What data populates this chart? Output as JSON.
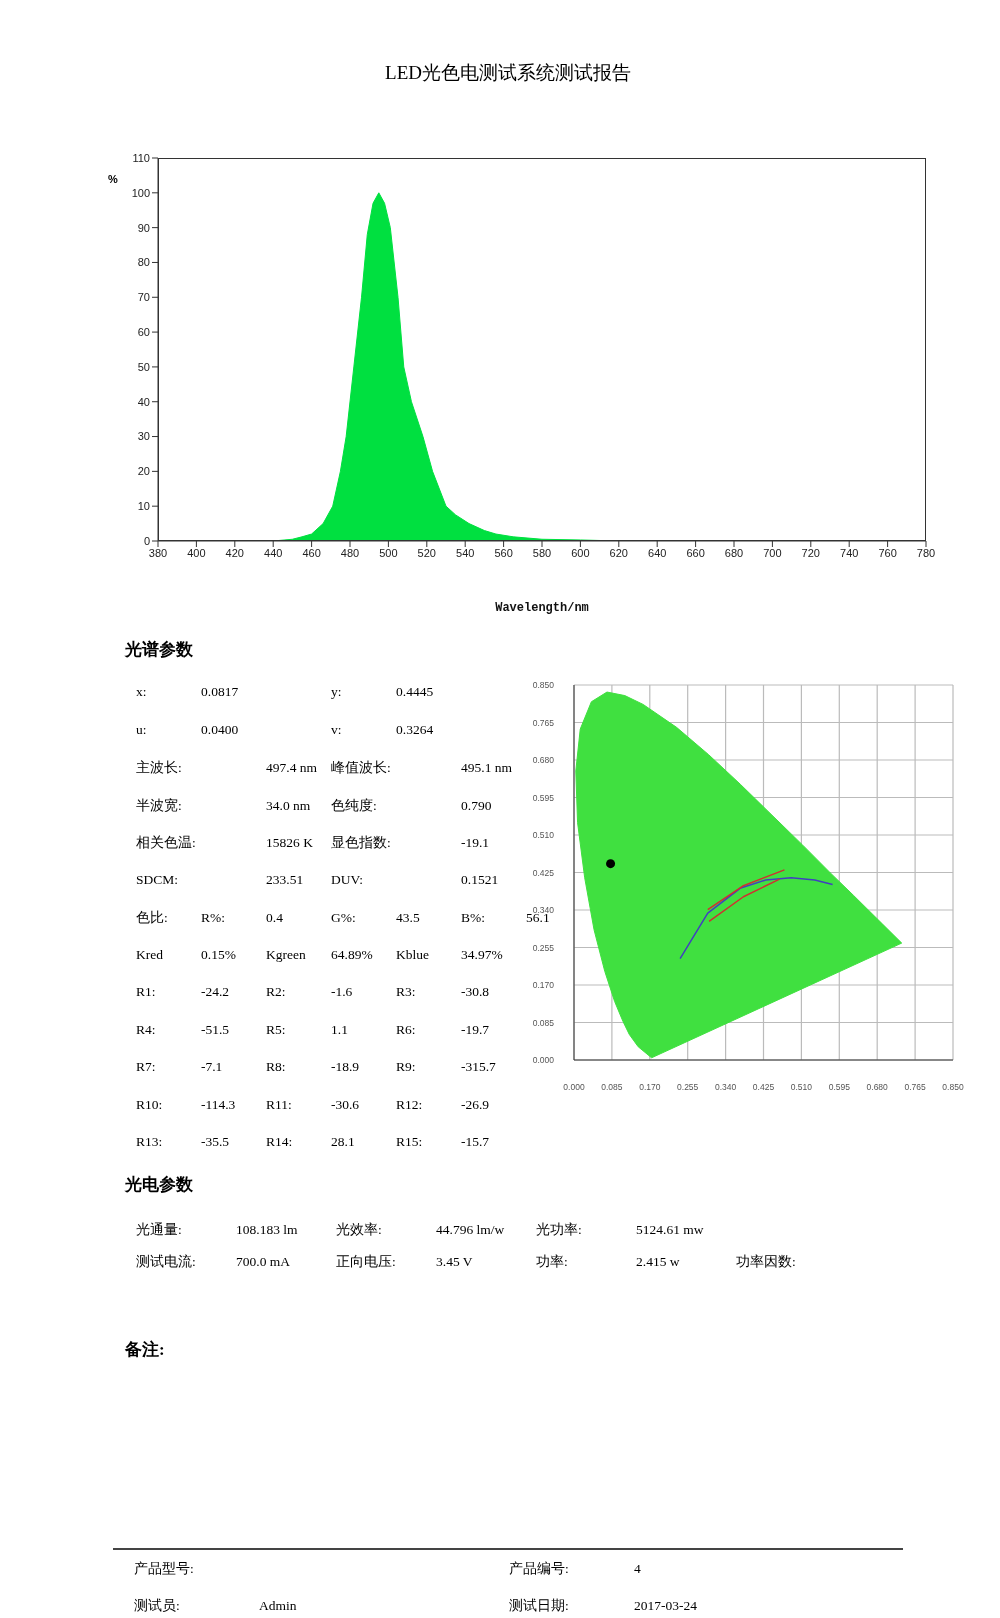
{
  "chart_data": [
    {
      "type": "area",
      "title": "LED光色电测试系统测试报告",
      "xlabel": "Wavelength/nm",
      "ylabel": "%",
      "color": "#00e040",
      "grid": false,
      "x": [
        380,
        440,
        450,
        455,
        460,
        466,
        471,
        475,
        478,
        482,
        486,
        489,
        492,
        495,
        498,
        501,
        505,
        508,
        512,
        518,
        523,
        530,
        535,
        542,
        550,
        556,
        565,
        580,
        600,
        620,
        780
      ],
      "values": [
        0,
        0,
        0.5,
        1.2,
        2,
        5,
        10,
        20,
        30,
        50,
        70,
        88,
        97,
        100,
        97,
        90,
        70,
        50,
        40,
        30,
        20,
        10,
        7.5,
        5,
        3,
        2,
        1.2,
        0.5,
        0.3,
        0,
        0
      ],
      "xlim": [
        380,
        780
      ],
      "xticks": [
        380,
        400,
        420,
        440,
        460,
        480,
        500,
        520,
        540,
        560,
        580,
        600,
        620,
        640,
        660,
        680,
        700,
        720,
        740,
        760,
        780
      ],
      "ylim": [
        0,
        110
      ],
      "yticks": [
        0,
        10,
        20,
        30,
        40,
        50,
        60,
        70,
        80,
        90,
        100,
        110
      ]
    },
    {
      "type": "other",
      "title": "光谱参数",
      "annotations": [
        "x:\t0.0817\t\ty:\t0.4445",
        "u:\t0.0400\t\tv:\t0.3264",
        "主波长:\t\t497.4 nm\t峰值波长:\t\t495.1 nm",
        "半波宽:\t\t34.0 nm\t色纯度:\t\t0.790",
        "相关色温:\t\t15826 K\t显色指数:\t\t-19.1",
        "SDCM:\t\t233.51\tDUV:\t\t0.1521",
        "色比:\tR%:\t0.4\tG%:\t43.5\tB%:\t56.1",
        "Kred\t0.15%\tKgreen\t64.89%\tKblue\t34.97%",
        "R1:\t-24.2\tR2:\t-1.6\tR3:\t-30.8",
        "R4:\t-51.5\tR5:\t1.1\tR6:\t-19.7",
        "R7:\t-7.1\tR8:\t-18.9\tR9:\t-315.7",
        "R10:\t-114.3\tR11:\t-30.6\tR12:\t-26.9",
        "R13:\t-35.5\tR14:\t28.1\tR15:\t-15.7"
      ]
    },
    {
      "type": "scatter",
      "grid": true,
      "xlim": [
        0,
        0.85
      ],
      "xticks": [
        {
          "value": 0,
          "label": "0.000"
        },
        {
          "value": 0.085,
          "label": "0.085"
        },
        {
          "value": 0.17,
          "label": "0.170"
        },
        {
          "value": 0.255,
          "label": "0.255"
        },
        {
          "value": 0.34,
          "label": "0.340"
        },
        {
          "value": 0.425,
          "label": "0.425"
        },
        {
          "value": 0.51,
          "label": "0.510"
        },
        {
          "value": 0.595,
          "label": "0.595"
        },
        {
          "value": 0.68,
          "label": "0.680"
        },
        {
          "value": 0.765,
          "label": "0.765"
        },
        {
          "value": 0.85,
          "label": "0.850"
        }
      ],
      "ylim": [
        0,
        0.85
      ],
      "yticks": [
        {
          "value": 0,
          "label": "0.000"
        },
        {
          "value": 0.085,
          "label": "0.085"
        },
        {
          "value": 0.17,
          "label": "0.170"
        },
        {
          "value": 0.255,
          "label": "0.255"
        },
        {
          "value": 0.34,
          "label": "0.340"
        },
        {
          "value": 0.425,
          "label": "0.425"
        },
        {
          "value": 0.51,
          "label": "0.510"
        },
        {
          "value": 0.595,
          "label": "0.595"
        },
        {
          "value": 0.68,
          "label": "0.680"
        },
        {
          "value": 0.765,
          "label": "0.765"
        },
        {
          "value": 0.85,
          "label": "0.850"
        }
      ],
      "series": [
        {
          "type": "area",
          "marker": "none",
          "color": "#40e040",
          "x": [
            0.174,
            0.144,
            0.124,
            0.11,
            0.091,
            0.069,
            0.045,
            0.024,
            0.008,
            0.004,
            0.014,
            0.039,
            0.074,
            0.114,
            0.155,
            0.23,
            0.302,
            0.373,
            0.444,
            0.513,
            0.575,
            0.627,
            0.692,
            0.735,
            0.174
          ],
          "values": [
            0.005,
            0.03,
            0.058,
            0.087,
            0.133,
            0.201,
            0.295,
            0.413,
            0.538,
            0.655,
            0.75,
            0.812,
            0.834,
            0.826,
            0.806,
            0.754,
            0.692,
            0.625,
            0.555,
            0.487,
            0.424,
            0.373,
            0.308,
            0.265,
            0.005
          ]
        },
        {
          "type": "line",
          "marker": "none",
          "color": "#4040c0",
          "x": [
            0.238,
            0.3,
            0.374,
            0.43,
            0.487,
            0.54,
            0.58
          ],
          "values": [
            0.23,
            0.333,
            0.39,
            0.408,
            0.413,
            0.408,
            0.398
          ]
        },
        {
          "type": "line",
          "marker": "none",
          "color": "#d03030",
          "x": [
            0.3,
            0.38,
            0.472
          ],
          "values": [
            0.341,
            0.395,
            0.431
          ]
        },
        {
          "type": "line",
          "marker": "none",
          "color": "#d03030",
          "x": [
            0.303,
            0.38,
            0.461
          ],
          "values": [
            0.314,
            0.37,
            0.41
          ]
        },
        {
          "type": "scatter",
          "marker": "circle",
          "color": "#000000",
          "x": [
            0.082
          ],
          "values": [
            0.445
          ]
        }
      ]
    },
    {
      "type": "other",
      "title": "光电参数",
      "annotations": [
        "光通量:\t108.183 lm\t光效率:\t44.796 lm/w\t光功率:\t5124.61 mw",
        "测试电流:\t700.0 mA\t正向电压:\t3.45 V\t功率:\t2.415 w\t功率因数:"
      ]
    },
    {
      "type": "other",
      "title": "备注:"
    },
    {
      "type": "other",
      "annotations": [
        "产品型号:\t\t\t产品编号:\t4",
        "测试员:\tAdmin\t\t测试日期:\t2017-03-24"
      ]
    }
  ]
}
